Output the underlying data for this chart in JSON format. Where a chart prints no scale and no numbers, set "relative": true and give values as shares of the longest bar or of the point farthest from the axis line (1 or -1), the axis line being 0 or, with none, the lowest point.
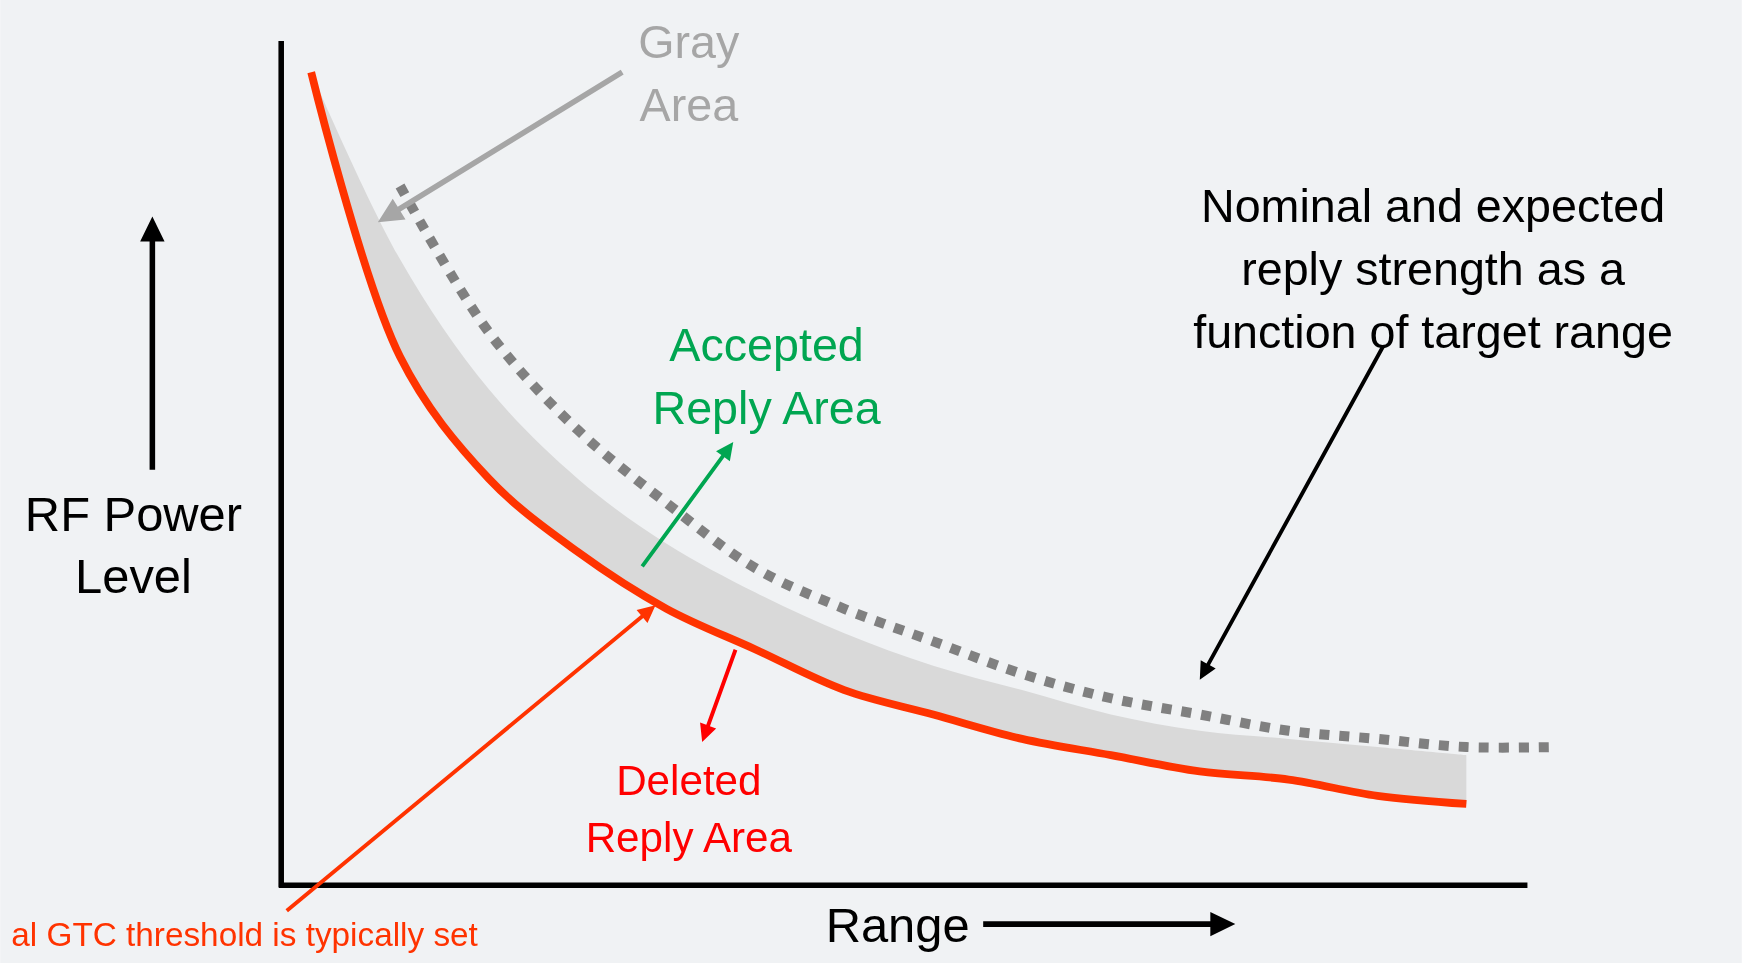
{
  "chart_data": {
    "type": "line",
    "relative": true,
    "xlabel": "Range",
    "ylabel": "RF Power Level",
    "categories": [
      null,
      null,
      null,
      null,
      null,
      null,
      null,
      null,
      null,
      null,
      null,
      null,
      null,
      null,
      null
    ],
    "series": [
      {
        "color": "#ff3300",
        "line_style": "solid",
        "values": [
          1,
          0.65,
          0.5,
          0.41,
          0.34,
          0.29,
          0.24,
          0.21,
          0.18,
          0.16,
          0.14,
          0.13,
          0.11,
          0.1,
          null
        ],
        "lower": [
          1,
          0.65,
          0.5,
          0.41,
          0.34,
          0.29,
          0.24,
          0.21,
          0.18,
          0.16,
          0.14,
          0.13,
          0.11,
          0.1,
          null
        ],
        "upper": [
          1,
          0.77,
          0.61,
          0.5,
          0.42,
          0.36,
          0.31,
          0.27,
          0.24,
          0.21,
          0.19,
          0.18,
          0.17,
          0.16,
          null
        ]
      },
      {
        "color": "#808080",
        "line_style": "dotted",
        "values": [
          null,
          0.86,
          0.68,
          0.56,
          0.47,
          0.39,
          0.34,
          0.3,
          0.26,
          0.23,
          0.21,
          0.19,
          0.18,
          0.17,
          0.17
        ]
      }
    ],
    "annotations": [
      "Gray Area",
      "Nominal and expected reply strength as a function of target range",
      "Accepted Reply Area",
      "Deleted Reply Area",
      "al GTC threshold is typically set"
    ]
  }
}
